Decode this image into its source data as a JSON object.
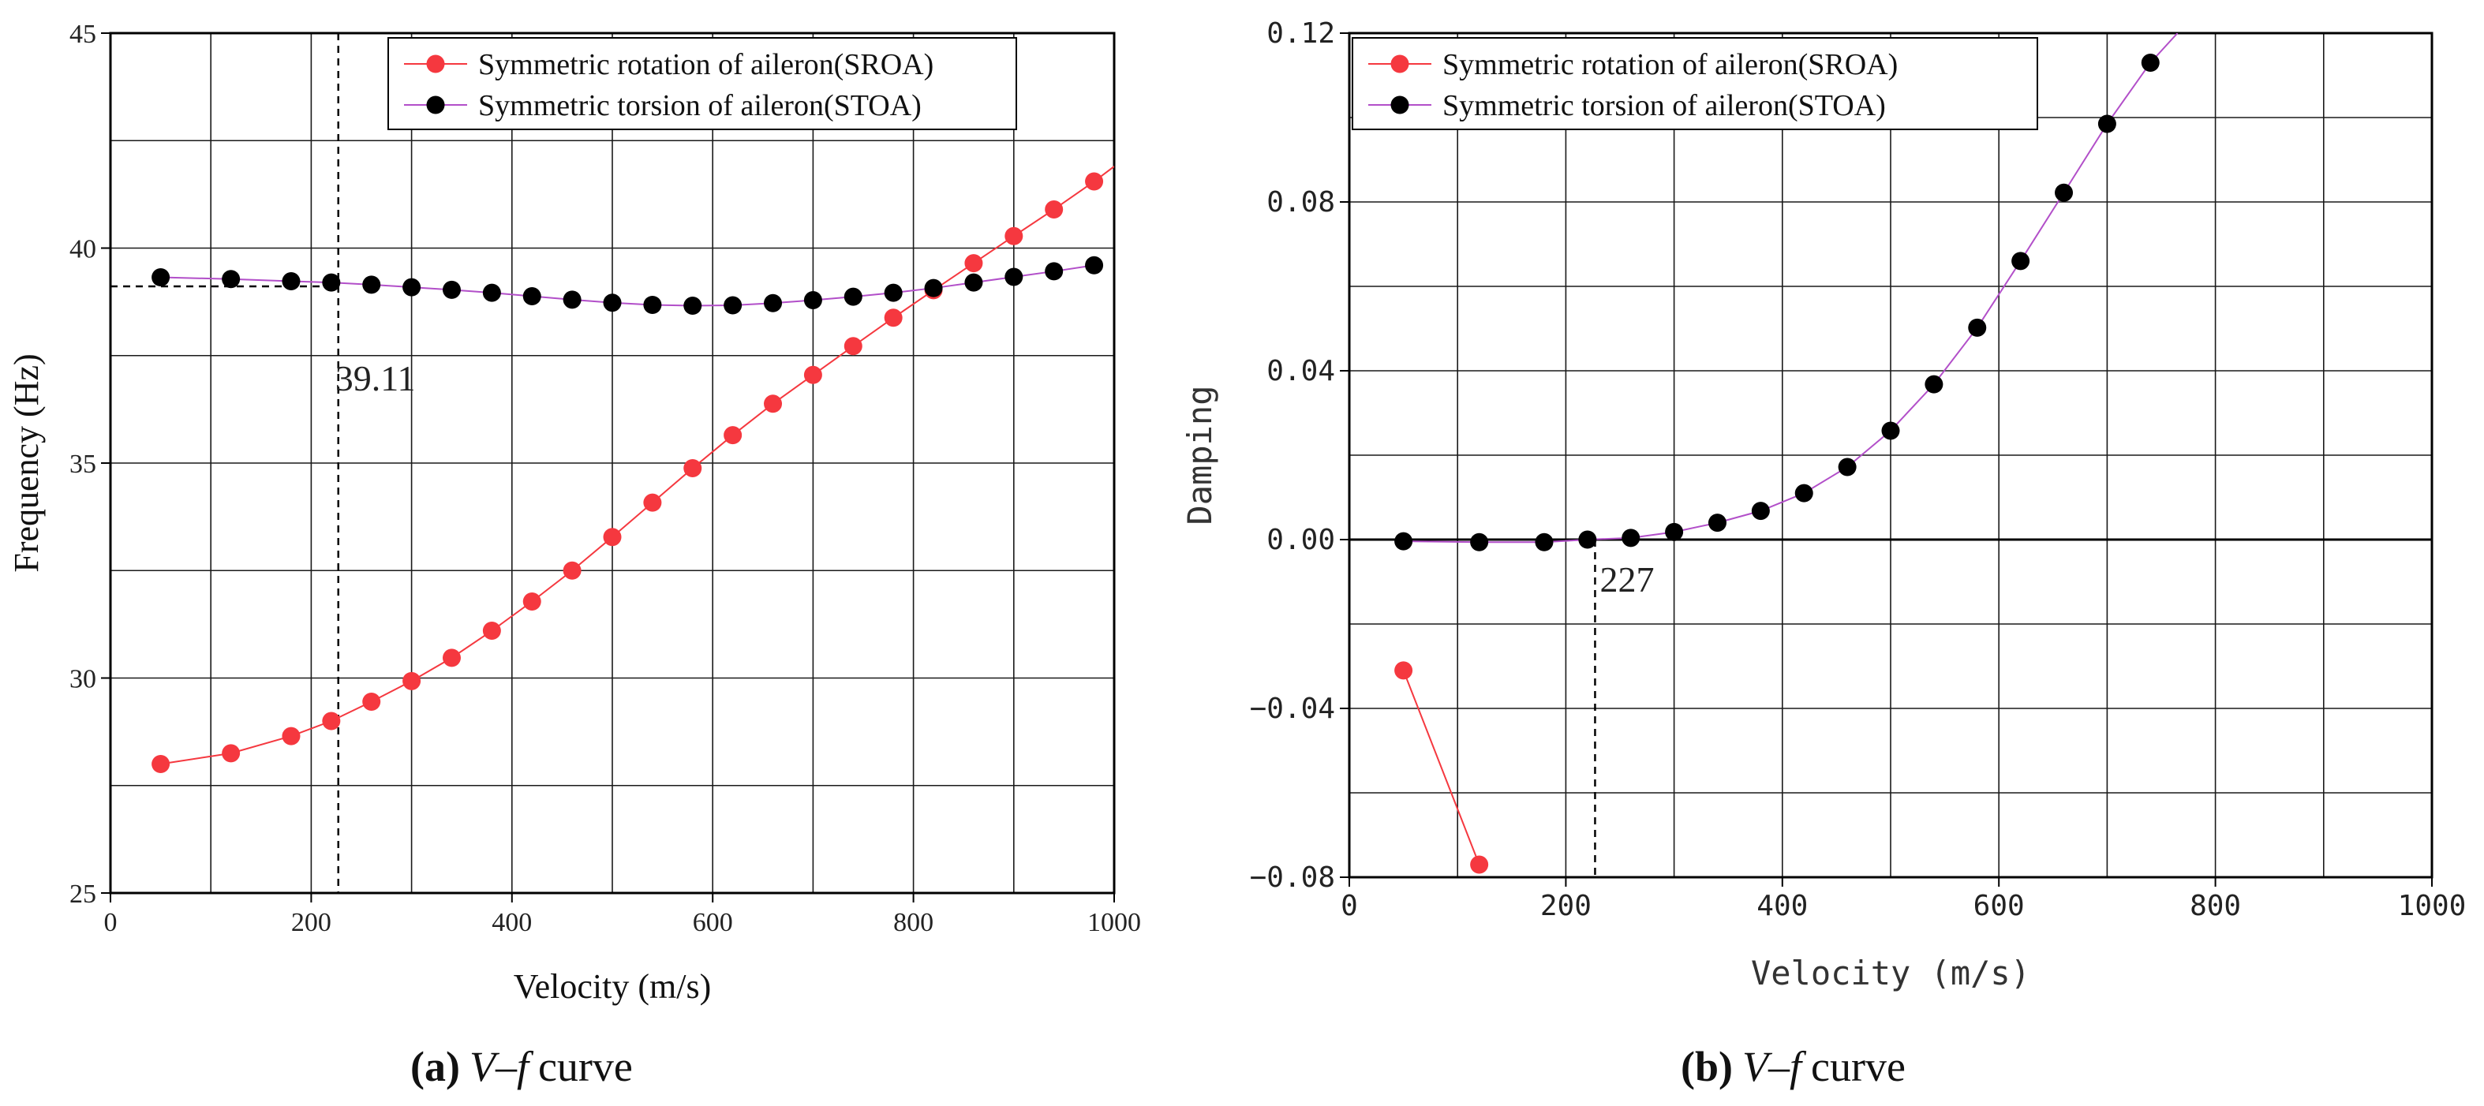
{
  "chart_data": [
    {
      "type": "line",
      "panel": "a",
      "xlabel": "Velocity (m/s)",
      "ylabel": "Frequency (Hz)",
      "xlim": [
        0,
        1000
      ],
      "ylim": [
        25,
        45
      ],
      "xticks": [
        0,
        200,
        400,
        600,
        800,
        1000
      ],
      "yticks": [
        25,
        30,
        35,
        40,
        45
      ],
      "grid": true,
      "legend_position": "top-right",
      "annotation": {
        "text": "39.11",
        "x": 227,
        "y": 39.11
      },
      "caption": {
        "bold": "(a)",
        "italic": "V–f",
        "rest": "curve"
      },
      "series": [
        {
          "name": "Symmetric rotation of aileron(SROA)",
          "color": "#f5383f",
          "x": [
            50,
            120,
            180,
            220,
            260,
            300,
            340,
            380,
            420,
            460,
            500,
            540,
            580,
            620,
            660,
            700,
            740,
            780,
            820,
            860,
            900,
            940,
            980
          ],
          "y": [
            28.0,
            28.25,
            28.65,
            29.0,
            29.45,
            29.93,
            30.47,
            31.1,
            31.78,
            32.5,
            33.28,
            34.08,
            34.88,
            35.65,
            36.38,
            37.05,
            37.72,
            38.38,
            39.02,
            39.65,
            40.28,
            40.9,
            41.55
          ],
          "line_end": {
            "x": 1000,
            "y": 41.9
          }
        },
        {
          "name": "Symmetric torsion of aileron(STOA)",
          "color": "#000000",
          "x": [
            50,
            120,
            180,
            220,
            260,
            300,
            340,
            380,
            420,
            460,
            500,
            540,
            580,
            620,
            660,
            700,
            740,
            780,
            820,
            860,
            900,
            940,
            980
          ],
          "y": [
            39.32,
            39.28,
            39.23,
            39.2,
            39.15,
            39.09,
            39.03,
            38.96,
            38.88,
            38.8,
            38.73,
            38.68,
            38.66,
            38.67,
            38.72,
            38.79,
            38.87,
            38.96,
            39.07,
            39.2,
            39.33,
            39.46,
            39.6
          ]
        }
      ]
    },
    {
      "type": "line",
      "panel": "b",
      "xlabel": "Velocity (m/s)",
      "ylabel": "Damping",
      "xlim": [
        0,
        1000
      ],
      "ylim": [
        -0.08,
        0.12
      ],
      "xticks": [
        0,
        200,
        400,
        600,
        800,
        1000
      ],
      "yticks": [
        -0.08,
        -0.04,
        0.0,
        0.04,
        0.08,
        0.12
      ],
      "ytick_labels": [
        "−0.08",
        "−0.04",
        "0.00",
        "0.04",
        "0.08",
        "0.12"
      ],
      "grid": true,
      "legend_position": "top-left",
      "annotation": {
        "text": "227",
        "x": 227,
        "y": 0.0
      },
      "caption": {
        "bold": "(b)",
        "italic": "V–f",
        "rest": "curve"
      },
      "series": [
        {
          "name": "Symmetric rotation of aileron(SROA)",
          "color": "#f5383f",
          "x": [
            50,
            120
          ],
          "y": [
            -0.031,
            -0.077
          ]
        },
        {
          "name": "Symmetric torsion of aileron(STOA)",
          "color": "#000000",
          "x": [
            50,
            120,
            180,
            220,
            260,
            300,
            340,
            380,
            420,
            460,
            500,
            540,
            580,
            620,
            660,
            700,
            740
          ],
          "y": [
            -0.0004,
            -0.0006,
            -0.0006,
            0.0,
            0.0004,
            0.0018,
            0.004,
            0.0068,
            0.011,
            0.0172,
            0.0258,
            0.0368,
            0.0502,
            0.066,
            0.0822,
            0.0985,
            0.113
          ],
          "line_end": {
            "x": 765,
            "y": 0.12
          }
        }
      ]
    }
  ]
}
